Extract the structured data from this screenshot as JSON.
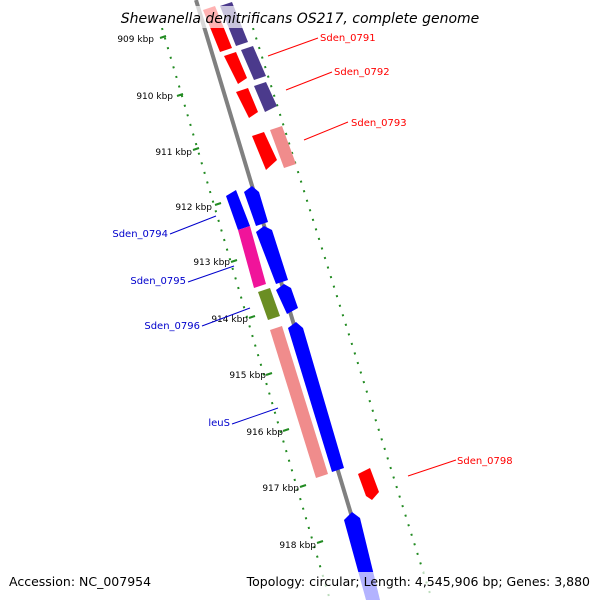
{
  "header": {
    "title": "Shewanella denitrificans OS217, complete genome"
  },
  "footer": {
    "accession": "Accession: NC_007954",
    "topology": "Topology: circular; Length: 4,545,906 bp; Genes: 3,880"
  },
  "colors": {
    "forward_strand": "#ff0000",
    "reverse_strand": "#0000ff",
    "dark_purple": "#4b3a8c",
    "salmon": "#f08c8c",
    "magenta": "#f0149a",
    "olive": "#6b8e23",
    "tick_green": "#228b22",
    "axis_gray": "#808080"
  },
  "ticks": [
    {
      "label": "909 kbp"
    },
    {
      "label": "910 kbp"
    },
    {
      "label": "911 kbp"
    },
    {
      "label": "912 kbp"
    },
    {
      "label": "913 kbp"
    },
    {
      "label": "914 kbp"
    },
    {
      "label": "915 kbp"
    },
    {
      "label": "916 kbp"
    },
    {
      "label": "917 kbp"
    },
    {
      "label": "918 kbp"
    }
  ],
  "gene_labels": [
    {
      "name": "Sden_0791",
      "color": "#ff0000"
    },
    {
      "name": "Sden_0792",
      "color": "#ff0000"
    },
    {
      "name": "Sden_0793",
      "color": "#ff0000"
    },
    {
      "name": "Sden_0794",
      "color": "#0000cc"
    },
    {
      "name": "Sden_0795",
      "color": "#0000cc"
    },
    {
      "name": "Sden_0796",
      "color": "#0000cc"
    },
    {
      "name": "leuS",
      "color": "#0000cc"
    },
    {
      "name": "Sden_0798",
      "color": "#ff0000"
    }
  ]
}
